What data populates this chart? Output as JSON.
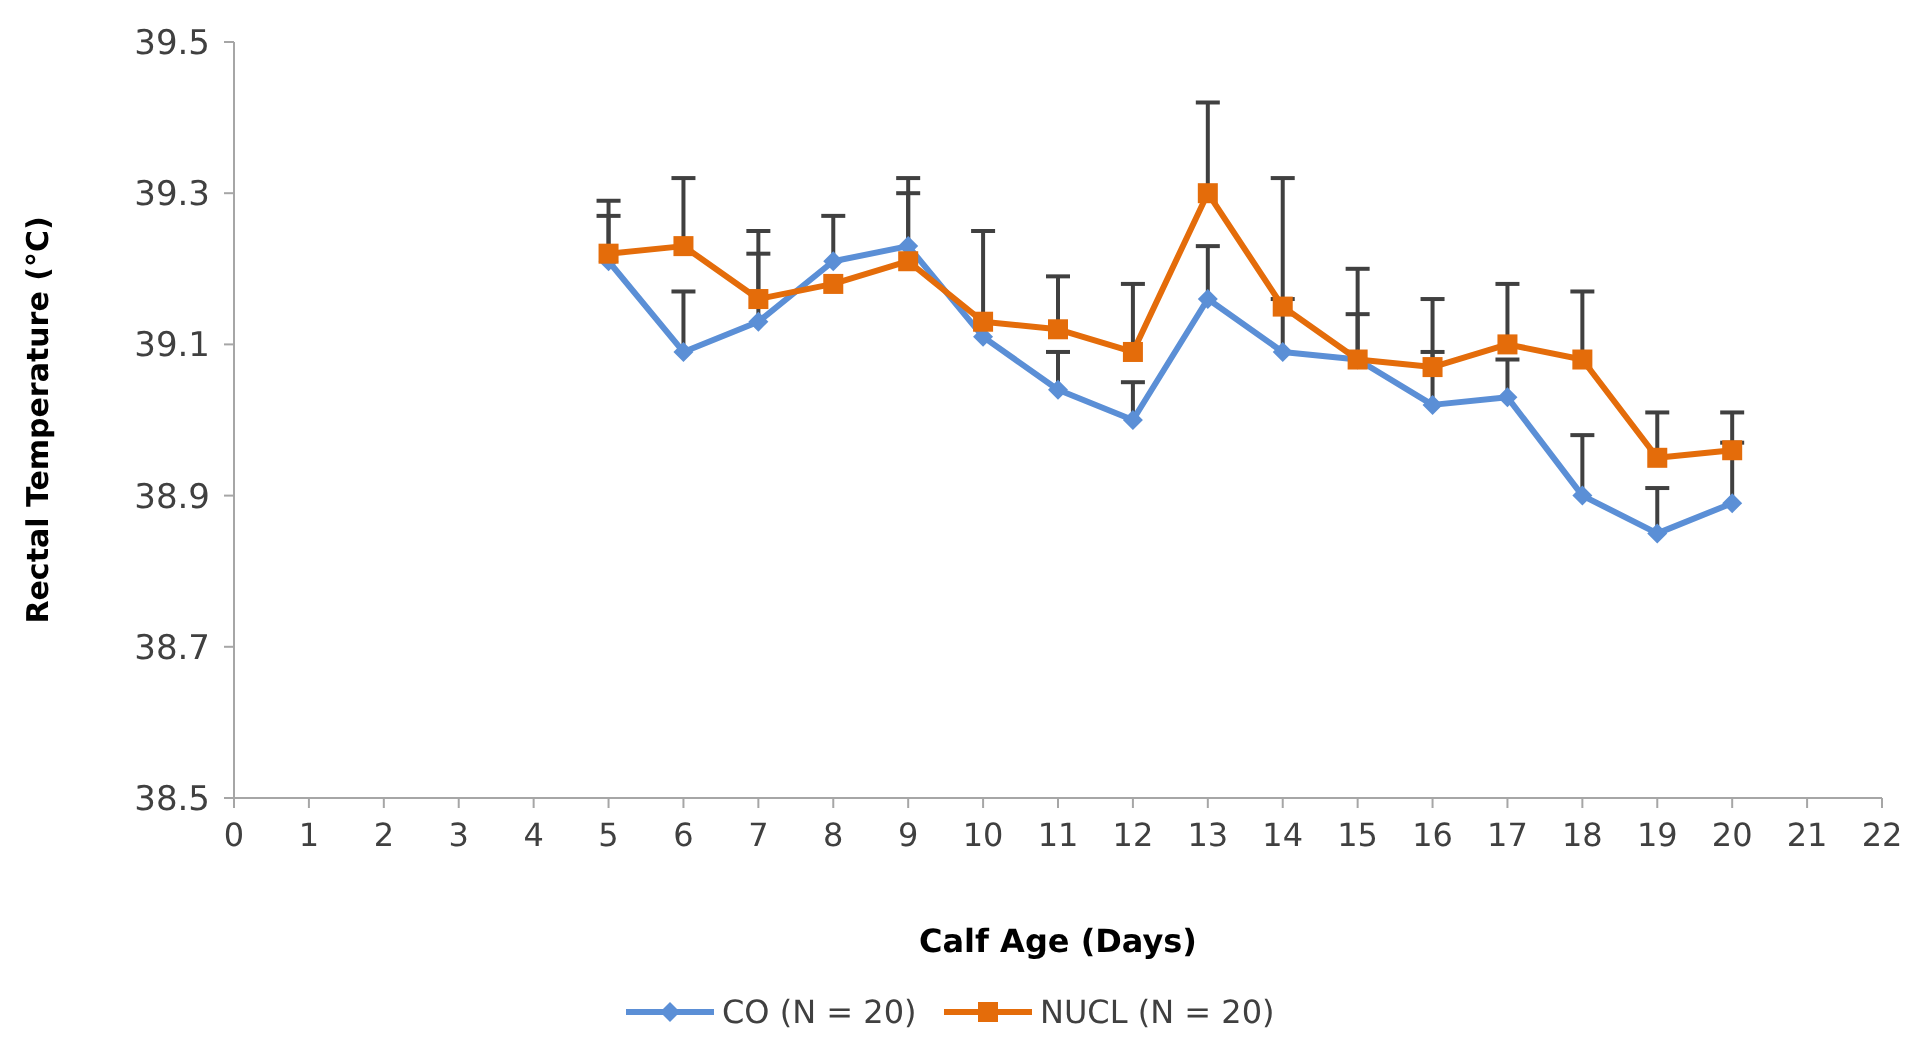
{
  "chart_data": {
    "type": "line",
    "xlabel": "Calf Age (Days)",
    "ylabel": "Rectal Temperature (°C)",
    "xlim": [
      0,
      22
    ],
    "xticks": [
      0,
      1,
      2,
      3,
      4,
      5,
      6,
      7,
      8,
      9,
      10,
      11,
      12,
      13,
      14,
      15,
      16,
      17,
      18,
      19,
      20,
      21,
      22
    ],
    "ylim": [
      38.5,
      39.5
    ],
    "yticks": [
      38.5,
      38.7,
      38.9,
      39.1,
      39.3,
      39.5
    ],
    "grid": false,
    "legend": "bottom",
    "series": [
      {
        "name": "CO (N = 20)",
        "color": "#5b8fd6",
        "marker": "diamond",
        "x": [
          5,
          6,
          7,
          8,
          9,
          10,
          11,
          12,
          13,
          14,
          15,
          16,
          17,
          18,
          19,
          20
        ],
        "values": [
          39.21,
          39.09,
          39.13,
          39.21,
          39.23,
          39.11,
          39.04,
          39.0,
          39.16,
          39.09,
          39.08,
          39.02,
          39.03,
          38.9,
          38.85,
          38.89
        ],
        "errors": [
          [
            39.21,
            39.27
          ],
          [
            39.09,
            39.17
          ],
          [
            39.13,
            39.22
          ],
          [
            39.21,
            39.27
          ],
          [
            39.23,
            39.3
          ],
          null,
          [
            39.04,
            39.09
          ],
          [
            39.0,
            39.05
          ],
          [
            39.16,
            39.23
          ],
          [
            39.09,
            39.16
          ],
          [
            39.08,
            39.14
          ],
          [
            39.02,
            39.09
          ],
          [
            39.03,
            39.08
          ],
          [
            38.9,
            38.98
          ],
          [
            38.85,
            38.91
          ],
          [
            38.89,
            38.97
          ]
        ]
      },
      {
        "name": "NUCL (N = 20)",
        "color": "#e46c0a",
        "marker": "square",
        "x": [
          5,
          6,
          7,
          8,
          9,
          10,
          11,
          12,
          13,
          14,
          15,
          16,
          17,
          18,
          19,
          20
        ],
        "values": [
          39.22,
          39.23,
          39.16,
          39.18,
          39.21,
          39.13,
          39.12,
          39.09,
          39.3,
          39.15,
          39.08,
          39.07,
          39.1,
          39.08,
          38.95,
          38.96
        ],
        "errors": [
          [
            39.22,
            39.29
          ],
          [
            39.23,
            39.32
          ],
          [
            39.16,
            39.25
          ],
          null,
          [
            39.21,
            39.32
          ],
          [
            39.13,
            39.25
          ],
          [
            39.12,
            39.19
          ],
          [
            39.09,
            39.18
          ],
          [
            39.3,
            39.42
          ],
          [
            39.15,
            39.32
          ],
          [
            39.08,
            39.2
          ],
          [
            39.07,
            39.16
          ],
          [
            39.1,
            39.18
          ],
          [
            39.08,
            39.17
          ],
          [
            38.95,
            39.01
          ],
          [
            38.96,
            39.01
          ]
        ]
      }
    ]
  }
}
